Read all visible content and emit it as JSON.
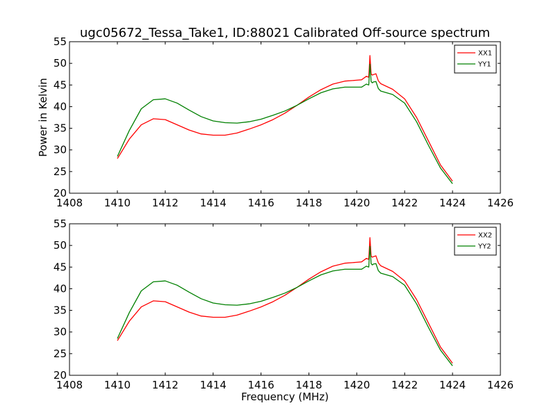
{
  "chart_data": [
    {
      "type": "line",
      "title": "ugc05672_Tessa_Take1, ID:88021 Calibrated Off-source spectrum",
      "xlabel": "",
      "ylabel": "Power in Kelvin",
      "xlim": [
        1408,
        1426
      ],
      "ylim": [
        20,
        55
      ],
      "xticks": [
        1408,
        1410,
        1412,
        1414,
        1416,
        1418,
        1420,
        1422,
        1424,
        1426
      ],
      "yticks": [
        20,
        25,
        30,
        35,
        40,
        45,
        50,
        55
      ],
      "grid": false,
      "legend_position": "top-right",
      "series": [
        {
          "name": "XX1",
          "color": "#ff0000",
          "x": [
            1410.0,
            1410.5,
            1411.0,
            1411.5,
            1412.0,
            1412.5,
            1413.0,
            1413.5,
            1414.0,
            1414.5,
            1415.0,
            1415.5,
            1416.0,
            1416.5,
            1417.0,
            1417.5,
            1418.0,
            1418.5,
            1419.0,
            1419.5,
            1420.0,
            1420.2,
            1420.4,
            1420.5,
            1420.55,
            1420.6,
            1420.65,
            1420.7,
            1420.8,
            1420.9,
            1421.0,
            1421.5,
            1422.0,
            1422.5,
            1423.0,
            1423.5,
            1424.0
          ],
          "y": [
            28.0,
            32.5,
            35.8,
            37.2,
            37.0,
            35.8,
            34.6,
            33.7,
            33.4,
            33.4,
            33.9,
            34.8,
            35.8,
            37.0,
            38.5,
            40.3,
            42.2,
            43.9,
            45.2,
            45.9,
            46.1,
            46.2,
            47.0,
            46.8,
            51.8,
            47.5,
            47.3,
            47.4,
            47.6,
            46.0,
            45.3,
            44.0,
            41.8,
            37.5,
            32.0,
            26.5,
            22.8
          ]
        },
        {
          "name": "YY1",
          "color": "#008000",
          "x": [
            1410.0,
            1410.5,
            1411.0,
            1411.5,
            1412.0,
            1412.5,
            1413.0,
            1413.5,
            1414.0,
            1414.5,
            1415.0,
            1415.5,
            1416.0,
            1416.5,
            1417.0,
            1417.5,
            1418.0,
            1418.5,
            1419.0,
            1419.5,
            1420.0,
            1420.2,
            1420.4,
            1420.5,
            1420.55,
            1420.6,
            1420.65,
            1420.7,
            1420.8,
            1420.9,
            1421.0,
            1421.5,
            1422.0,
            1422.5,
            1423.0,
            1423.5,
            1424.0
          ],
          "y": [
            28.5,
            34.5,
            39.5,
            41.6,
            41.8,
            40.8,
            39.2,
            37.7,
            36.7,
            36.3,
            36.2,
            36.5,
            37.1,
            38.0,
            39.0,
            40.3,
            41.8,
            43.2,
            44.1,
            44.5,
            44.5,
            44.5,
            45.2,
            45.0,
            49.8,
            45.8,
            45.5,
            45.7,
            45.8,
            44.2,
            43.6,
            42.8,
            40.8,
            36.5,
            31.0,
            25.8,
            22.2
          ]
        }
      ]
    },
    {
      "type": "line",
      "title": "",
      "xlabel": "Frequency (MHz)",
      "ylabel": "",
      "xlim": [
        1408,
        1426
      ],
      "ylim": [
        20,
        55
      ],
      "xticks": [
        1408,
        1410,
        1412,
        1414,
        1416,
        1418,
        1420,
        1422,
        1424,
        1426
      ],
      "yticks": [
        20,
        25,
        30,
        35,
        40,
        45,
        50,
        55
      ],
      "grid": false,
      "legend_position": "top-right",
      "series": [
        {
          "name": "XX2",
          "color": "#ff0000",
          "x": [
            1410.0,
            1410.5,
            1411.0,
            1411.5,
            1412.0,
            1412.5,
            1413.0,
            1413.5,
            1414.0,
            1414.5,
            1415.0,
            1415.5,
            1416.0,
            1416.5,
            1417.0,
            1417.5,
            1418.0,
            1418.5,
            1419.0,
            1419.5,
            1420.0,
            1420.2,
            1420.4,
            1420.5,
            1420.55,
            1420.6,
            1420.65,
            1420.7,
            1420.8,
            1420.9,
            1421.0,
            1421.5,
            1422.0,
            1422.5,
            1423.0,
            1423.5,
            1424.0
          ],
          "y": [
            28.0,
            32.5,
            35.8,
            37.2,
            37.0,
            35.8,
            34.6,
            33.7,
            33.4,
            33.4,
            33.9,
            34.8,
            35.8,
            37.0,
            38.5,
            40.3,
            42.2,
            43.9,
            45.2,
            45.9,
            46.1,
            46.2,
            47.0,
            46.8,
            51.8,
            47.5,
            47.3,
            47.4,
            47.6,
            46.0,
            45.3,
            44.0,
            41.8,
            37.5,
            32.0,
            26.5,
            22.8
          ]
        },
        {
          "name": "YY2",
          "color": "#008000",
          "x": [
            1410.0,
            1410.5,
            1411.0,
            1411.5,
            1412.0,
            1412.5,
            1413.0,
            1413.5,
            1414.0,
            1414.5,
            1415.0,
            1415.5,
            1416.0,
            1416.5,
            1417.0,
            1417.5,
            1418.0,
            1418.5,
            1419.0,
            1419.5,
            1420.0,
            1420.2,
            1420.4,
            1420.5,
            1420.55,
            1420.6,
            1420.65,
            1420.7,
            1420.8,
            1420.9,
            1421.0,
            1421.5,
            1422.0,
            1422.5,
            1423.0,
            1423.5,
            1424.0
          ],
          "y": [
            28.5,
            34.5,
            39.5,
            41.6,
            41.8,
            40.8,
            39.2,
            37.7,
            36.7,
            36.3,
            36.2,
            36.5,
            37.1,
            38.0,
            39.0,
            40.3,
            41.8,
            43.2,
            44.1,
            44.5,
            44.5,
            44.5,
            45.2,
            45.0,
            49.8,
            45.8,
            45.5,
            45.7,
            45.8,
            44.2,
            43.6,
            42.8,
            40.8,
            36.5,
            31.0,
            25.8,
            22.2
          ]
        }
      ]
    }
  ]
}
